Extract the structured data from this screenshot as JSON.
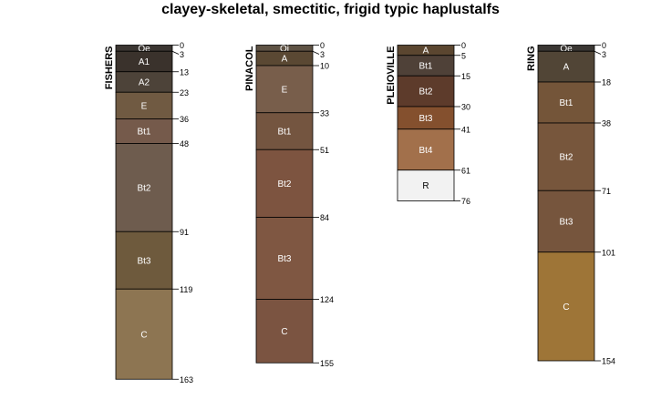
{
  "title": "clayey-skeletal, smectitic, frigid typic haplustalfs",
  "chart_data": {
    "type": "soil-profile",
    "depth_unit": "cm",
    "profiles": [
      {
        "name": "FISHERS",
        "horizons": [
          {
            "label": "Oe",
            "top": 0,
            "bottom": 3,
            "color": "#3b3632"
          },
          {
            "label": "A1",
            "top": 3,
            "bottom": 13,
            "color": "#3a322c"
          },
          {
            "label": "A2",
            "top": 13,
            "bottom": 23,
            "color": "#4d4339"
          },
          {
            "label": "E",
            "top": 23,
            "bottom": 36,
            "color": "#705a42"
          },
          {
            "label": "Bt1",
            "top": 36,
            "bottom": 48,
            "color": "#755a4b"
          },
          {
            "label": "Bt2",
            "top": 48,
            "bottom": 91,
            "color": "#6e5c4e"
          },
          {
            "label": "Bt3",
            "top": 91,
            "bottom": 119,
            "color": "#6e5a3d"
          },
          {
            "label": "C",
            "top": 119,
            "bottom": 163,
            "color": "#8d7552"
          }
        ]
      },
      {
        "name": "PINACOL",
        "horizons": [
          {
            "label": "Oi",
            "top": 0,
            "bottom": 3,
            "color": "#5e5244"
          },
          {
            "label": "A",
            "top": 3,
            "bottom": 10,
            "color": "#5a4833"
          },
          {
            "label": "E",
            "top": 10,
            "bottom": 33,
            "color": "#785e4b"
          },
          {
            "label": "Bt1",
            "top": 33,
            "bottom": 51,
            "color": "#745540"
          },
          {
            "label": "Bt2",
            "top": 51,
            "bottom": 84,
            "color": "#7d5440"
          },
          {
            "label": "Bt3",
            "top": 84,
            "bottom": 124,
            "color": "#7f5742"
          },
          {
            "label": "C",
            "top": 124,
            "bottom": 155,
            "color": "#7b5441"
          }
        ]
      },
      {
        "name": "PLEIOVILLE",
        "horizons": [
          {
            "label": "A",
            "top": 0,
            "bottom": 5,
            "color": "#5b4630"
          },
          {
            "label": "Bt1",
            "top": 5,
            "bottom": 15,
            "color": "#4f4138"
          },
          {
            "label": "Bt2",
            "top": 15,
            "bottom": 30,
            "color": "#5d3b2b"
          },
          {
            "label": "Bt3",
            "top": 30,
            "bottom": 41,
            "color": "#84502e"
          },
          {
            "label": "Bt4",
            "top": 41,
            "bottom": 61,
            "color": "#a2704b"
          },
          {
            "label": "R",
            "top": 61,
            "bottom": 76,
            "color": "#f2f2f2"
          }
        ]
      },
      {
        "name": "RING",
        "horizons": [
          {
            "label": "Oe",
            "top": 0,
            "bottom": 3,
            "color": "#3a3733"
          },
          {
            "label": "A",
            "top": 3,
            "bottom": 18,
            "color": "#514536"
          },
          {
            "label": "Bt1",
            "top": 18,
            "bottom": 38,
            "color": "#745539"
          },
          {
            "label": "Bt2",
            "top": 38,
            "bottom": 71,
            "color": "#77563c"
          },
          {
            "label": "Bt3",
            "top": 71,
            "bottom": 101,
            "color": "#76553d"
          },
          {
            "label": "C",
            "top": 101,
            "bottom": 154,
            "color": "#9e7537"
          }
        ]
      }
    ]
  }
}
